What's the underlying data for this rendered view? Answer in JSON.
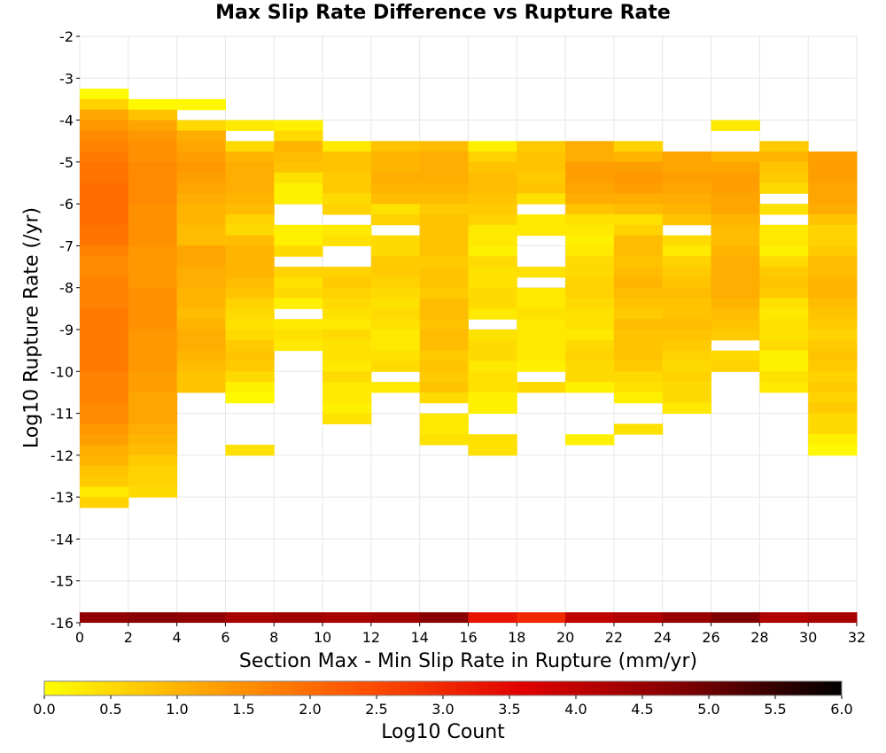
{
  "chart_data": {
    "type": "heatmap",
    "title": "Max Slip Rate Difference vs Rupture Rate",
    "xlabel": "Section Max - Min Slip Rate in Rupture (mm/yr)",
    "ylabel": "Log10 Rupture Rate (/yr)",
    "colorbar_label": "Log10 Count",
    "xlim": [
      0,
      32
    ],
    "ylim": [
      -16,
      -2
    ],
    "x_bin_width": 2,
    "y_bin_width": 0.25,
    "grid": true,
    "x_ticks": [
      "0",
      "2",
      "4",
      "6",
      "8",
      "10",
      "12",
      "14",
      "16",
      "18",
      "20",
      "22",
      "24",
      "26",
      "28",
      "30",
      "32"
    ],
    "y_ticks": [
      "-2",
      "-3",
      "-4",
      "-5",
      "-6",
      "-7",
      "-8",
      "-9",
      "-10",
      "-11",
      "-12",
      "-13",
      "-14",
      "-15",
      "-16"
    ],
    "colorbar_ticks": [
      "0.0",
      "0.5",
      "1.0",
      "1.5",
      "2.0",
      "2.5",
      "3.0",
      "3.5",
      "4.0",
      "4.5",
      "5.0",
      "5.5",
      "6.0"
    ],
    "colorbar_range": [
      0,
      6
    ],
    "colorbar_colors": [
      "#ffff00",
      "#ffa500",
      "#ff5000",
      "#e00000",
      "#800000",
      "#000000"
    ],
    "columns": [
      {
        "x": 0,
        "top": -3.25,
        "values": [
          0.05,
          0.6,
          1.2,
          1.4,
          1.6,
          1.7,
          1.8,
          1.9,
          1.9,
          2.0,
          2.0,
          2.0,
          2.0,
          1.9,
          1.9,
          1.7,
          1.6,
          1.6,
          1.7,
          1.7,
          1.7,
          1.8,
          1.8,
          1.8,
          1.8,
          1.8,
          1.8,
          1.7,
          1.7,
          1.7,
          1.6,
          1.6,
          1.4,
          1.3,
          1.1,
          1.0,
          0.8,
          0.7,
          0.3,
          0.6
        ],
        "bottom_value": 4.6
      },
      {
        "x": 2,
        "top": -3.5,
        "values": [
          0.1,
          0.8,
          1.2,
          1.4,
          1.5,
          1.5,
          1.6,
          1.6,
          1.6,
          1.6,
          1.5,
          1.5,
          1.5,
          1.5,
          1.4,
          1.4,
          1.4,
          1.4,
          1.5,
          1.5,
          1.5,
          1.5,
          1.4,
          1.4,
          1.4,
          1.4,
          1.3,
          1.3,
          1.2,
          1.2,
          1.2,
          1.1,
          1.0,
          0.9,
          0.7,
          0.6,
          0.6,
          0.5
        ],
        "bottom_value": 4.7
      },
      {
        "x": 4,
        "top": -3.5,
        "values": [
          0.1,
          null,
          0.5,
          1.1,
          1.2,
          1.3,
          1.4,
          1.3,
          1.2,
          1.1,
          1.0,
          1.0,
          0.9,
          0.9,
          1.2,
          1.2,
          1.1,
          1.1,
          1.0,
          1.0,
          0.9,
          1.0,
          1.1,
          1.1,
          1.0,
          0.9,
          0.8,
          0.8
        ],
        "bottom_value": 4.6
      },
      {
        "x": 6,
        "top": -4.0,
        "values": [
          0.3,
          null,
          0.5,
          1.0,
          1.1,
          1.1,
          1.1,
          1.0,
          0.9,
          0.6,
          0.5,
          0.9,
          1.0,
          1.0,
          1.0,
          0.9,
          0.8,
          0.6,
          0.5,
          0.4,
          0.5,
          0.7,
          0.8,
          0.7,
          0.5,
          0.2,
          0.1,
          null,
          null,
          null,
          null,
          0.4
        ],
        "bottom_value": 4.3
      },
      {
        "x": 8,
        "top": -4.0,
        "values": [
          0.2,
          0.5,
          1.0,
          0.9,
          0.8,
          0.4,
          0.2,
          0.2,
          null,
          null,
          0.2,
          0.2,
          0.5,
          null,
          0.6,
          0.4,
          0.5,
          0.2,
          null,
          0.3,
          0.4,
          0.3
        ],
        "bottom_value": 4.4
      },
      {
        "x": 10,
        "top": -4.5,
        "values": [
          0.3,
          0.8,
          0.8,
          0.7,
          0.7,
          0.5,
          0.6,
          null,
          0.3,
          0.4,
          null,
          null,
          0.6,
          0.7,
          0.6,
          0.5,
          0.4,
          0.3,
          0.5,
          0.4,
          0.4,
          0.3,
          0.5,
          0.3,
          0.3,
          0.2,
          0.4
        ],
        "bottom_value": 4.3
      },
      {
        "x": 12,
        "top": -4.5,
        "values": [
          0.8,
          1.0,
          1.0,
          1.1,
          1.0,
          0.9,
          0.4,
          0.6,
          null,
          0.5,
          0.5,
          0.7,
          0.7,
          0.6,
          0.5,
          0.4,
          0.5,
          0.4,
          0.3,
          0.3,
          0.4,
          0.5,
          null,
          0.3
        ],
        "bottom_value": 4.4
      },
      {
        "x": 14,
        "top": -4.5,
        "values": [
          0.9,
          1.1,
          1.1,
          1.1,
          1.0,
          0.9,
          0.7,
          0.8,
          0.8,
          0.8,
          0.8,
          0.7,
          0.8,
          0.8,
          0.7,
          0.9,
          0.9,
          0.8,
          0.9,
          0.9,
          0.7,
          0.8,
          0.7,
          0.8,
          0.5,
          null,
          0.3,
          0.3,
          0.4
        ],
        "bottom_value": 4.7
      },
      {
        "x": 16,
        "top": -4.5,
        "values": [
          0.2,
          0.6,
          0.8,
          0.9,
          0.9,
          0.8,
          0.7,
          0.6,
          0.3,
          0.3,
          0.2,
          0.5,
          0.4,
          0.4,
          0.5,
          0.5,
          0.3,
          null,
          0.4,
          0.5,
          0.5,
          0.3,
          0.4,
          0.4,
          0.2,
          0.2,
          null,
          null,
          0.4,
          0.4
        ],
        "bottom_value": 3.3
      },
      {
        "x": 18,
        "top": -4.5,
        "values": [
          0.7,
          0.8,
          0.8,
          0.7,
          0.8,
          0.4,
          null,
          0.3,
          0.3,
          null,
          null,
          null,
          0.4,
          null,
          0.3,
          0.3,
          0.4,
          0.3,
          0.3,
          0.3,
          0.3,
          0.2,
          null,
          0.5
        ],
        "bottom_value": 3.0
      },
      {
        "x": 20,
        "top": -4.5,
        "values": [
          1.1,
          1.1,
          1.3,
          1.3,
          1.2,
          1.1,
          0.8,
          0.4,
          0.3,
          0.2,
          0.3,
          0.5,
          0.5,
          0.6,
          0.6,
          0.5,
          0.4,
          0.4,
          0.3,
          0.5,
          0.6,
          0.5,
          0.5,
          0.2,
          null,
          null,
          null,
          null,
          0.2
        ],
        "bottom_value": 4.0
      },
      {
        "x": 22,
        "top": -4.5,
        "values": [
          0.6,
          1.0,
          1.3,
          1.4,
          1.3,
          1.1,
          0.9,
          0.4,
          0.6,
          0.9,
          0.9,
          0.8,
          0.9,
          1.0,
          0.9,
          0.8,
          0.7,
          0.9,
          0.8,
          0.8,
          0.8,
          0.7,
          0.5,
          0.4,
          0.2,
          null,
          null,
          0.4
        ],
        "bottom_value": 4.2
      },
      {
        "x": 24,
        "top": -4.75,
        "values": [
          1.2,
          1.2,
          1.3,
          1.2,
          1.1,
          1.0,
          0.8,
          null,
          0.5,
          0.3,
          0.6,
          0.7,
          0.8,
          0.9,
          0.8,
          0.8,
          0.9,
          0.8,
          0.7,
          0.6,
          0.5,
          0.6,
          0.5,
          0.5,
          0.3
        ],
        "bottom_value": 4.5
      },
      {
        "x": 26,
        "top": -4.0,
        "values": [
          0.3,
          null,
          null,
          1.0,
          1.2,
          1.3,
          1.3,
          1.2,
          1.2,
          1.0,
          0.9,
          0.9,
          1.0,
          1.1,
          1.1,
          1.1,
          1.1,
          1.0,
          0.9,
          0.8,
          0.7,
          null,
          0.5,
          0.6
        ],
        "bottom_value": 4.8
      },
      {
        "x": 28,
        "top": -4.5,
        "values": [
          0.7,
          1.0,
          0.8,
          0.7,
          0.5,
          null,
          0.4,
          null,
          0.3,
          0.3,
          0.2,
          0.5,
          0.7,
          0.8,
          0.7,
          0.4,
          0.3,
          0.4,
          0.4,
          0.5,
          0.2,
          0.2,
          0.4,
          0.3
        ],
        "bottom_value": 4.2
      },
      {
        "x": 30,
        "top": -4.75,
        "values": [
          1.3,
          1.3,
          1.3,
          1.2,
          1.2,
          1.1,
          0.8,
          0.6,
          0.6,
          0.7,
          0.9,
          0.9,
          1.0,
          1.0,
          0.9,
          0.8,
          0.7,
          0.6,
          0.7,
          0.8,
          0.7,
          0.6,
          0.7,
          0.6,
          0.7,
          0.5,
          0.5,
          0.2,
          0.1
        ],
        "bottom_value": 4.3
      }
    ]
  }
}
